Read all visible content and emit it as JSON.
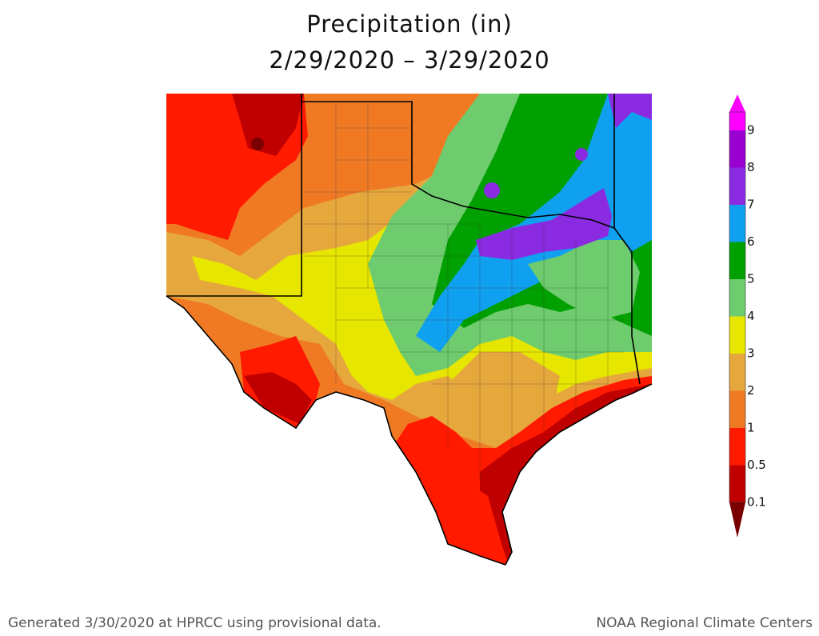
{
  "header": {
    "title": "Precipitation (in)",
    "subtitle": "2/29/2020 – 3/29/2020"
  },
  "legend": {
    "labels": [
      "0.1",
      "0.5",
      "1",
      "2",
      "3",
      "4",
      "5",
      "6",
      "7",
      "8",
      "9"
    ],
    "colors": [
      "#7a0000",
      "#c00000",
      "#ff1a00",
      "#f07a24",
      "#e6a83c",
      "#e6e600",
      "#6ecb6e",
      "#00a000",
      "#10a0f0",
      "#8a2be2",
      "#9a00d0",
      "#ff00ff"
    ]
  },
  "footer": {
    "left": "Generated 3/30/2020 at HPRCC using provisional data.",
    "right": "NOAA Regional Climate Centers"
  }
}
